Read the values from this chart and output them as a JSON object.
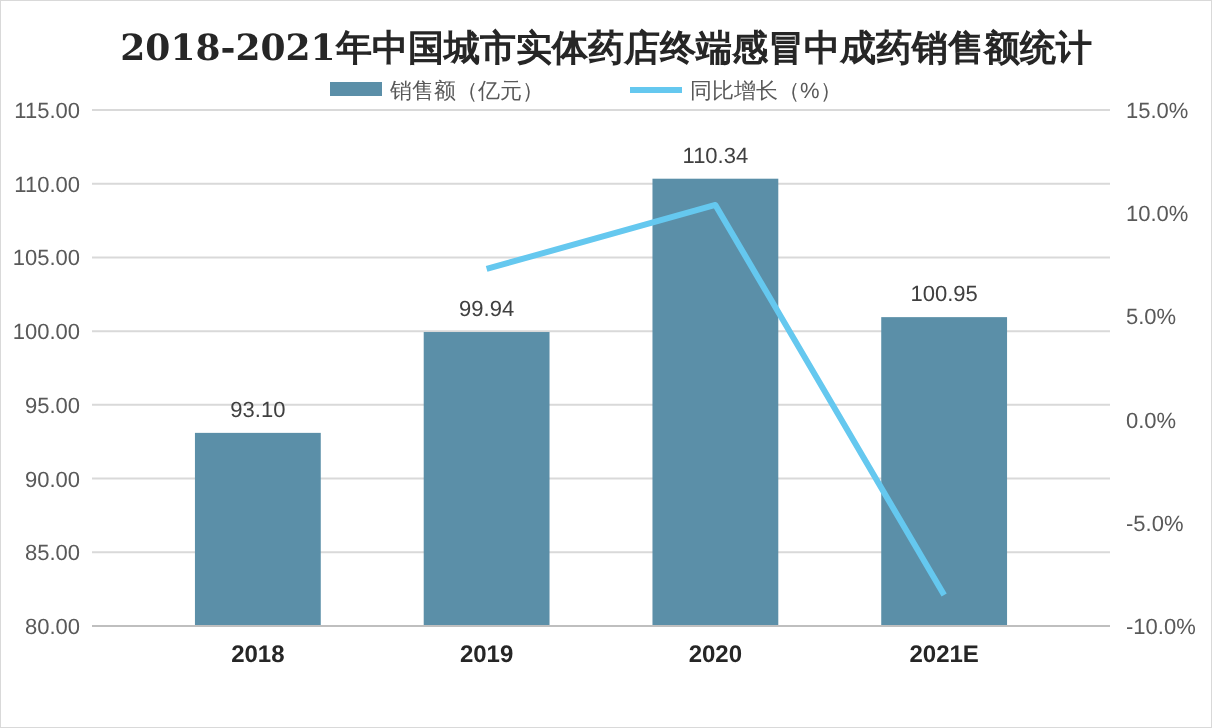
{
  "chart_data": {
    "type": "bar",
    "title": "2018-2021年中国城市实体药店终端感冒中成药销售额统计",
    "categories": [
      "2018",
      "2019",
      "2020",
      "2021E"
    ],
    "series": [
      {
        "name": "销售额（亿元）",
        "color": "#5b8fa8",
        "values": [
          93.1,
          99.94,
          110.34,
          100.95
        ],
        "value_labels": [
          "93.10",
          "99.94",
          "110.34",
          "100.95"
        ]
      },
      {
        "name": "同比增长（%）",
        "type": "line",
        "axis": "y2",
        "color": "#65c8ef",
        "values": [
          null,
          7.3,
          10.4,
          -8.5
        ]
      }
    ],
    "ylim": [
      80,
      115
    ],
    "yticks": [
      {
        "value": 80,
        "label": "80.00"
      },
      {
        "value": 85,
        "label": "85.00"
      },
      {
        "value": 90,
        "label": "90.00"
      },
      {
        "value": 95,
        "label": "95.00"
      },
      {
        "value": 100,
        "label": "100.00"
      },
      {
        "value": 105,
        "label": "105.00"
      },
      {
        "value": 110,
        "label": "110.00"
      },
      {
        "value": 115,
        "label": "115.00"
      }
    ],
    "y2lim": [
      -10,
      15
    ],
    "y2ticks": [
      {
        "value": -10,
        "label": "-10.0%"
      },
      {
        "value": -5,
        "label": "-5.0%"
      },
      {
        "value": 0,
        "label": "0.0%"
      },
      {
        "value": 5,
        "label": "5.0%"
      },
      {
        "value": 10,
        "label": "10.0%"
      },
      {
        "value": 15,
        "label": "15.0%"
      }
    ],
    "grid": "y",
    "legend": "top"
  }
}
